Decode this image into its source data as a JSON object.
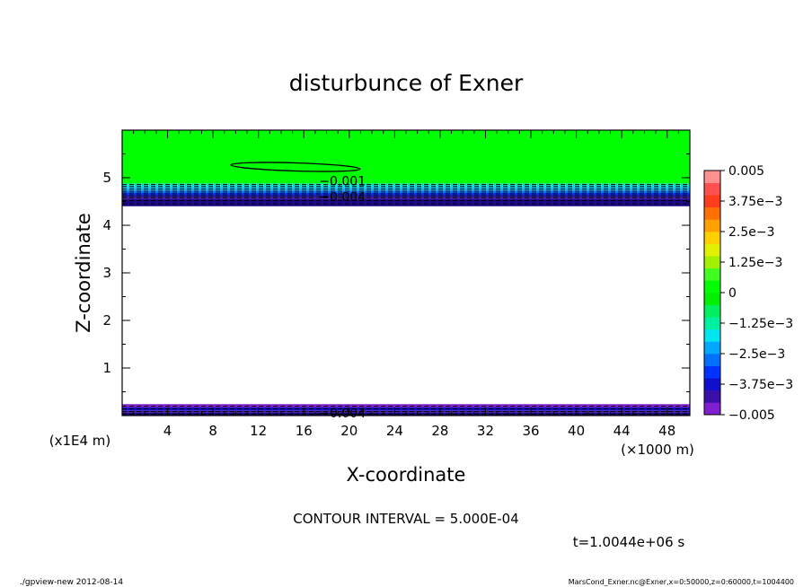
{
  "chart_data": {
    "type": "contour",
    "title": "disturbunce of Exner",
    "xlabel": "X-coordinate",
    "ylabel": "Z-coordinate",
    "x_unit": "(×1000 m)",
    "y_unit": "(x1E4 m)",
    "xlim": [
      0,
      50
    ],
    "ylim": [
      0,
      6
    ],
    "x_ticks": [
      4,
      8,
      12,
      16,
      20,
      24,
      28,
      32,
      36,
      40,
      44,
      48
    ],
    "y_ticks": [
      1,
      2,
      3,
      4,
      5
    ],
    "contour_interval_text": "CONTOUR INTERVAL = 5.000E-04",
    "time_text": "t=1.0044e+06 s",
    "contour_labels": [
      {
        "text": "−0.001",
        "x": 19.4,
        "z": 4.93
      },
      {
        "text": "−0.004",
        "x": 19.4,
        "z": 4.6
      },
      {
        "text": "−0.004",
        "x": 19.4,
        "z": 0.06
      }
    ],
    "colorbar": {
      "range": [
        -0.005,
        0.005
      ],
      "tick_labels": [
        "0.005",
        "3.75e−3",
        "2.5e−3",
        "1.25e−3",
        "0",
        "−1.25e−3",
        "−2.5e−3",
        "−3.75e−3",
        "−0.005"
      ],
      "level_colors": [
        "#7f1fd0",
        "#3a0fa8",
        "#1010cc",
        "#0033ff",
        "#0070ff",
        "#00a8ff",
        "#00e6f0",
        "#00f0a0",
        "#00f060",
        "#00f000",
        "#00ff00",
        "#40ff20",
        "#a0f000",
        "#e0f000",
        "#ffd000",
        "#ffa000",
        "#ff7000",
        "#ff3c1e",
        "#ff5050",
        "#ff9090"
      ]
    },
    "colors": {
      "background_field": "#00ff00",
      "empty_region": "#ffffff"
    }
  },
  "footer": {
    "left": "./gpview-new  2012-08-14",
    "right": "MarsCond_Exner.nc@Exner,x=0:50000,z=0:60000,t=1004400"
  }
}
